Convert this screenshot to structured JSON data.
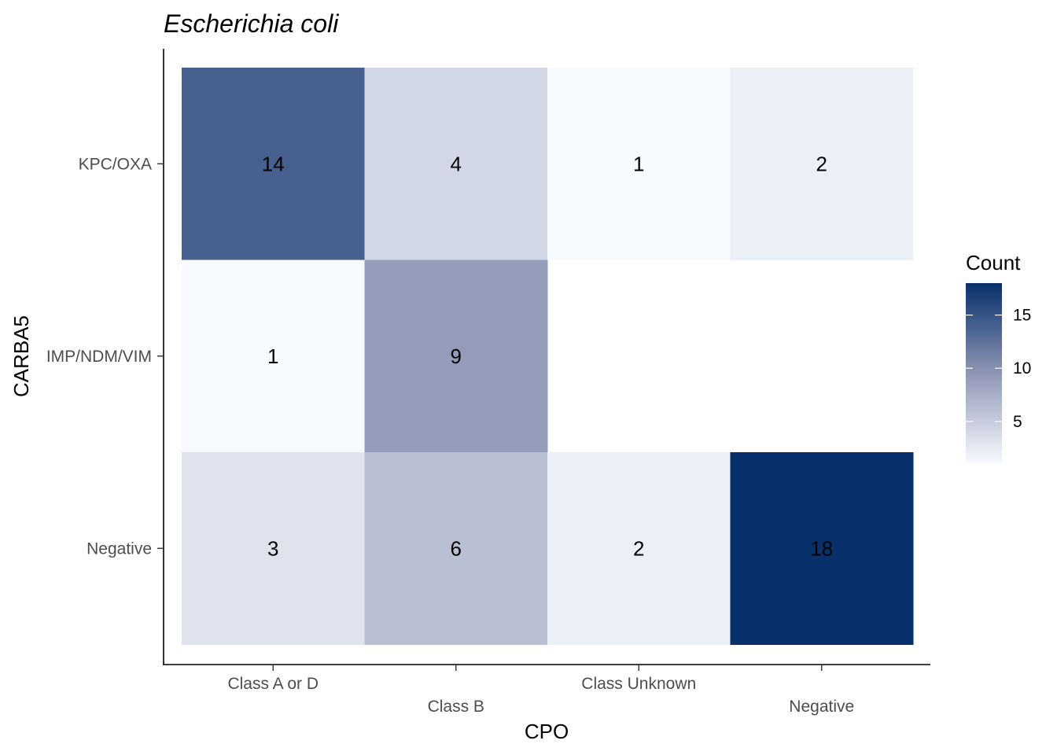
{
  "chart_data": {
    "type": "heatmap",
    "title": "Escherichia coli",
    "xlabel": "CPO",
    "ylabel": "CARBA5",
    "x_categories": [
      "Class A or D",
      "Class B",
      "Class Unknown",
      "Negative"
    ],
    "y_categories": [
      "KPC/OXA",
      "IMP/NDM/VIM",
      "Negative"
    ],
    "cells": [
      {
        "x": "Class A or D",
        "y": "KPC/OXA",
        "value": 14
      },
      {
        "x": "Class B",
        "y": "KPC/OXA",
        "value": 4
      },
      {
        "x": "Class Unknown",
        "y": "KPC/OXA",
        "value": 1
      },
      {
        "x": "Negative",
        "y": "KPC/OXA",
        "value": 2
      },
      {
        "x": "Class A or D",
        "y": "IMP/NDM/VIM",
        "value": 1
      },
      {
        "x": "Class B",
        "y": "IMP/NDM/VIM",
        "value": 9
      },
      {
        "x": "Class A or D",
        "y": "Negative",
        "value": 3
      },
      {
        "x": "Class B",
        "y": "Negative",
        "value": 6
      },
      {
        "x": "Class Unknown",
        "y": "Negative",
        "value": 2
      },
      {
        "x": "Negative",
        "y": "Negative",
        "value": 18
      }
    ],
    "legend": {
      "title": "Count",
      "position": "right",
      "ticks": [
        5,
        10,
        15
      ],
      "range": [
        1,
        18
      ],
      "low_color": "#F7FBFF",
      "high_color": "#08306B"
    },
    "grid": false
  }
}
